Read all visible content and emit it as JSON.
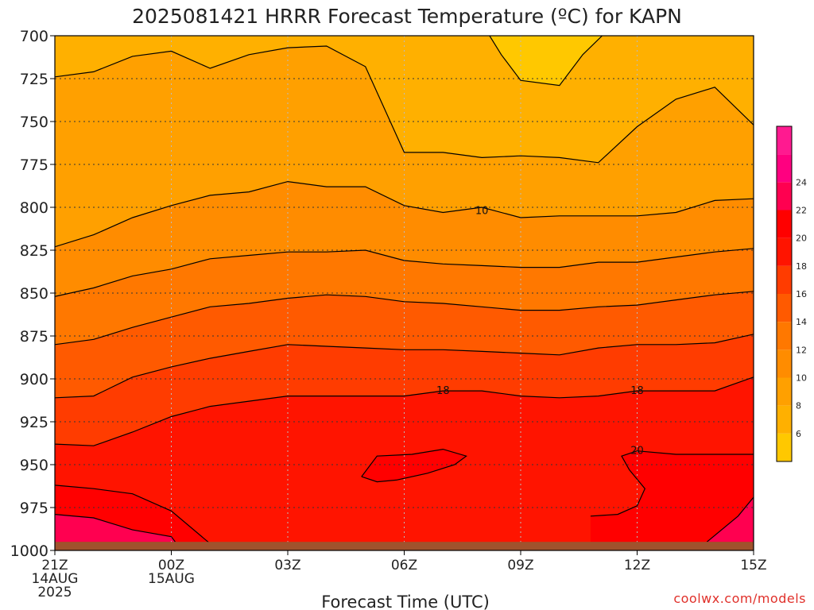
{
  "chart_data": {
    "type": "heatmap",
    "title": "2025081421 HRRR Forecast Temperature (ºC) for KAPN",
    "xlabel": "Forecast Time (UTC)",
    "ylabel": "",
    "credit": "coolwx.com/models",
    "x_hours": [
      0,
      1,
      2,
      3,
      4,
      5,
      6,
      7,
      8,
      9,
      10,
      11,
      12,
      13,
      14,
      15,
      16,
      17,
      18
    ],
    "x_ticks": [
      {
        "hour": 0,
        "lines": [
          "21Z",
          "14AUG",
          "2025"
        ]
      },
      {
        "hour": 3,
        "lines": [
          "00Z",
          "15AUG"
        ]
      },
      {
        "hour": 6,
        "lines": [
          "03Z"
        ]
      },
      {
        "hour": 9,
        "lines": [
          "06Z"
        ]
      },
      {
        "hour": 12,
        "lines": [
          "09Z"
        ]
      },
      {
        "hour": 15,
        "lines": [
          "12Z"
        ]
      },
      {
        "hour": 18,
        "lines": [
          "15Z"
        ]
      }
    ],
    "y_ticks": [
      700,
      725,
      750,
      775,
      800,
      825,
      850,
      875,
      900,
      925,
      950,
      975,
      1000
    ],
    "ylim": [
      700,
      1000
    ],
    "surface_pressure_hpa": 995,
    "colorbar": {
      "levels": [
        4,
        6,
        8,
        10,
        12,
        14,
        16,
        18,
        20,
        22,
        24,
        26
      ],
      "tick_labels": [
        "6",
        "8",
        "10",
        "12",
        "14",
        "16",
        "18",
        "20",
        "22",
        "24"
      ],
      "colors": [
        "#ffe000",
        "#ffc800",
        "#ffb000",
        "#ffa000",
        "#ff8c00",
        "#ff7800",
        "#ff5a00",
        "#ff3c00",
        "#ff1400",
        "#ff0000",
        "#ff0050",
        "#ff0080",
        "#ff1a90"
      ]
    },
    "isotherms": [
      {
        "temp": 6,
        "segments": [
          [
            [
              11.2,
              700
            ],
            [
              11.5,
              711
            ],
            [
              12.0,
              726
            ],
            [
              13.0,
              729
            ],
            [
              13.6,
              711
            ],
            [
              14.1,
              700
            ]
          ]
        ]
      },
      {
        "temp": 8,
        "segments": [
          [
            [
              0,
              724
            ],
            [
              1,
              721
            ],
            [
              2,
              712
            ],
            [
              3,
              709
            ],
            [
              4,
              719
            ],
            [
              5,
              711
            ],
            [
              6,
              707
            ],
            [
              7,
              706
            ],
            [
              8,
              718
            ],
            [
              9,
              768
            ],
            [
              10,
              768
            ],
            [
              11,
              771
            ],
            [
              12,
              770
            ],
            [
              13,
              771
            ],
            [
              14,
              774
            ],
            [
              15,
              753
            ],
            [
              16,
              737
            ],
            [
              17,
              730
            ],
            [
              18,
              752
            ]
          ]
        ]
      },
      {
        "temp": 10,
        "segments": [
          [
            [
              0,
              823
            ],
            [
              1,
              816
            ],
            [
              2,
              806
            ],
            [
              3,
              799
            ],
            [
              4,
              793
            ],
            [
              5,
              791
            ],
            [
              6,
              785
            ],
            [
              7,
              788
            ],
            [
              8,
              788
            ],
            [
              9,
              799
            ],
            [
              10,
              803
            ],
            [
              11,
              800
            ],
            [
              12,
              806
            ],
            [
              13,
              805
            ],
            [
              14,
              805
            ],
            [
              15,
              805
            ],
            [
              16,
              803
            ],
            [
              17,
              796
            ],
            [
              18,
              795
            ]
          ]
        ]
      },
      {
        "temp": 12,
        "segments": [
          [
            [
              0,
              852
            ],
            [
              1,
              847
            ],
            [
              2,
              840
            ],
            [
              3,
              836
            ],
            [
              4,
              830
            ],
            [
              5,
              828
            ],
            [
              6,
              826
            ],
            [
              7,
              826
            ],
            [
              8,
              825
            ],
            [
              9,
              831
            ],
            [
              10,
              833
            ],
            [
              11,
              834
            ],
            [
              12,
              835
            ],
            [
              13,
              835
            ],
            [
              14,
              832
            ],
            [
              15,
              832
            ],
            [
              16,
              829
            ],
            [
              17,
              826
            ],
            [
              18,
              824
            ]
          ]
        ]
      },
      {
        "temp": 14,
        "segments": [
          [
            [
              0,
              880
            ],
            [
              1,
              877
            ],
            [
              2,
              870
            ],
            [
              3,
              864
            ],
            [
              4,
              858
            ],
            [
              5,
              856
            ],
            [
              6,
              853
            ],
            [
              7,
              851
            ],
            [
              8,
              852
            ],
            [
              9,
              855
            ],
            [
              10,
              856
            ],
            [
              11,
              858
            ],
            [
              12,
              860
            ],
            [
              13,
              860
            ],
            [
              14,
              858
            ],
            [
              15,
              857
            ],
            [
              16,
              854
            ],
            [
              17,
              851
            ],
            [
              18,
              849
            ]
          ]
        ]
      },
      {
        "temp": 16,
        "segments": [
          [
            [
              0,
              911
            ],
            [
              1,
              910
            ],
            [
              2,
              899
            ],
            [
              3,
              893
            ],
            [
              4,
              888
            ],
            [
              5,
              884
            ],
            [
              6,
              880
            ],
            [
              7,
              881
            ],
            [
              8,
              882
            ],
            [
              9,
              883
            ],
            [
              10,
              883
            ],
            [
              11,
              884
            ],
            [
              12,
              885
            ],
            [
              13,
              886
            ],
            [
              14,
              882
            ],
            [
              15,
              880
            ],
            [
              16,
              880
            ],
            [
              17,
              879
            ],
            [
              18,
              874
            ]
          ]
        ]
      },
      {
        "temp": 18,
        "segments": [
          [
            [
              0,
              938
            ],
            [
              1,
              939
            ],
            [
              2,
              931
            ],
            [
              3,
              922
            ],
            [
              4,
              916
            ],
            [
              5,
              913
            ],
            [
              6,
              910
            ],
            [
              7,
              910
            ],
            [
              8,
              910
            ],
            [
              9,
              910
            ],
            [
              10,
              907
            ],
            [
              11,
              907
            ],
            [
              12,
              910
            ],
            [
              13,
              911
            ],
            [
              14,
              910
            ],
            [
              15,
              907
            ],
            [
              16,
              907
            ],
            [
              17,
              907
            ],
            [
              18,
              899
            ]
          ]
        ]
      },
      {
        "temp": 20,
        "segments": [
          [
            [
              0,
              962
            ],
            [
              1,
              964
            ],
            [
              2,
              967
            ],
            [
              3,
              977
            ],
            [
              4,
              996
            ]
          ],
          [
            [
              7.9,
              957
            ],
            [
              8.3,
              945
            ],
            [
              9.2,
              944
            ],
            [
              10.0,
              941
            ],
            [
              10.6,
              945
            ],
            [
              10.3,
              950
            ],
            [
              9.6,
              955
            ],
            [
              8.8,
              959
            ],
            [
              8.3,
              960
            ],
            [
              7.9,
              957
            ]
          ],
          [
            [
              18,
              944
            ],
            [
              17,
              944
            ],
            [
              16,
              944
            ],
            [
              15,
              942
            ],
            [
              14.6,
              945
            ],
            [
              14.8,
              953
            ],
            [
              15.2,
              964
            ],
            [
              15.0,
              974
            ],
            [
              14.5,
              979
            ],
            [
              13.8,
              980
            ]
          ]
        ]
      },
      {
        "temp": 22,
        "segments": [
          [
            [
              0,
              979
            ],
            [
              1,
              981
            ],
            [
              2,
              988
            ],
            [
              3,
              992
            ],
            [
              3.1,
              995
            ]
          ],
          [
            [
              16.8,
              995
            ],
            [
              17.6,
              980
            ],
            [
              18,
              969
            ]
          ]
        ]
      }
    ],
    "contour_labels": [
      {
        "temp": 10,
        "hour": 11,
        "p": 802
      },
      {
        "temp": 18,
        "hour": 10,
        "p": 907
      },
      {
        "temp": 18,
        "hour": 15,
        "p": 907
      },
      {
        "temp": 20,
        "hour": 15,
        "p": 942
      }
    ]
  }
}
